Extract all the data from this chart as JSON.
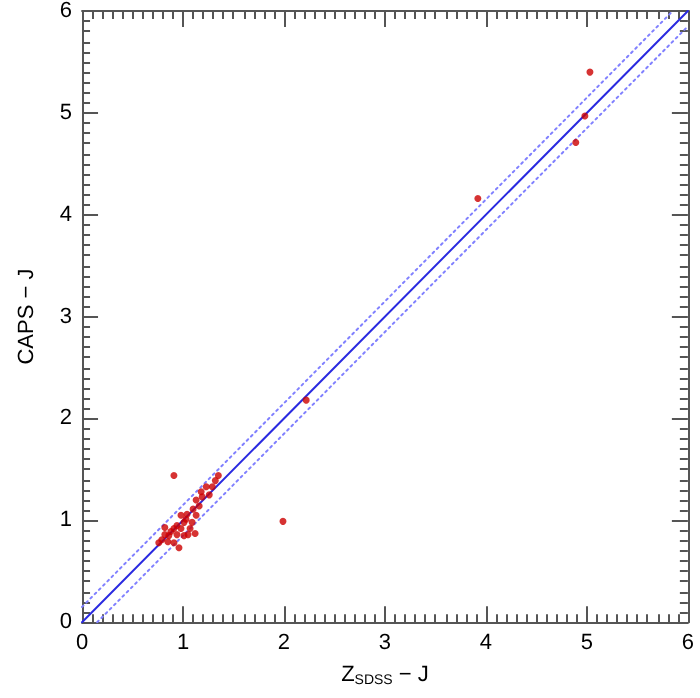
{
  "chart_data": {
    "type": "scatter",
    "xlabel": "Z$_{SDSS}$ − J",
    "ylabel": "CAPS − J",
    "xlim": [
      0,
      6
    ],
    "ylim": [
      0,
      6
    ],
    "xticks": [
      0,
      1,
      2,
      3,
      4,
      5,
      6
    ],
    "yticks": [
      0,
      1,
      2,
      3,
      4,
      5,
      6
    ],
    "grid": false,
    "series": [
      {
        "color": "#cc0000",
        "marker": "circle",
        "x": [
          0.91,
          1.99,
          2.22,
          3.92,
          4.89,
          4.98,
          5.03,
          1.35,
          1.32,
          1.23,
          1.18,
          1.26,
          1.13,
          1.16,
          1.1,
          1.13,
          1.04,
          0.98,
          1.01,
          0.94,
          0.91,
          0.88,
          0.82,
          0.79,
          0.76,
          0.85,
          0.91,
          0.96,
          1.01,
          1.05,
          1.12,
          1.07,
          0.82,
          0.98,
          0.94,
          0.86,
          1.03,
          1.09,
          1.19,
          1.29
        ],
        "values": [
          1.44,
          0.99,
          2.18,
          4.16,
          4.71,
          4.97,
          5.4,
          1.44,
          1.39,
          1.33,
          1.28,
          1.25,
          1.2,
          1.14,
          1.11,
          1.05,
          1.06,
          1.05,
          0.98,
          0.95,
          0.92,
          0.89,
          0.86,
          0.81,
          0.78,
          0.79,
          0.78,
          0.73,
          0.85,
          0.86,
          0.87,
          0.92,
          0.93,
          0.92,
          0.86,
          0.85,
          1.01,
          0.98,
          1.23,
          1.33
        ]
      },
      {
        "type": "line",
        "color": "#2a2ae0",
        "line_style": "solid",
        "marker": "none",
        "x": [
          0,
          6
        ],
        "values": [
          0,
          6
        ]
      },
      {
        "type": "line",
        "color": "#8080ff",
        "line_style": "dotted",
        "marker": "none",
        "x": [
          0,
          5.85
        ],
        "values": [
          0.15,
          6
        ]
      },
      {
        "type": "line",
        "color": "#8080ff",
        "line_style": "dotted",
        "marker": "none",
        "x": [
          0.15,
          6
        ],
        "values": [
          0,
          5.85
        ]
      }
    ]
  }
}
